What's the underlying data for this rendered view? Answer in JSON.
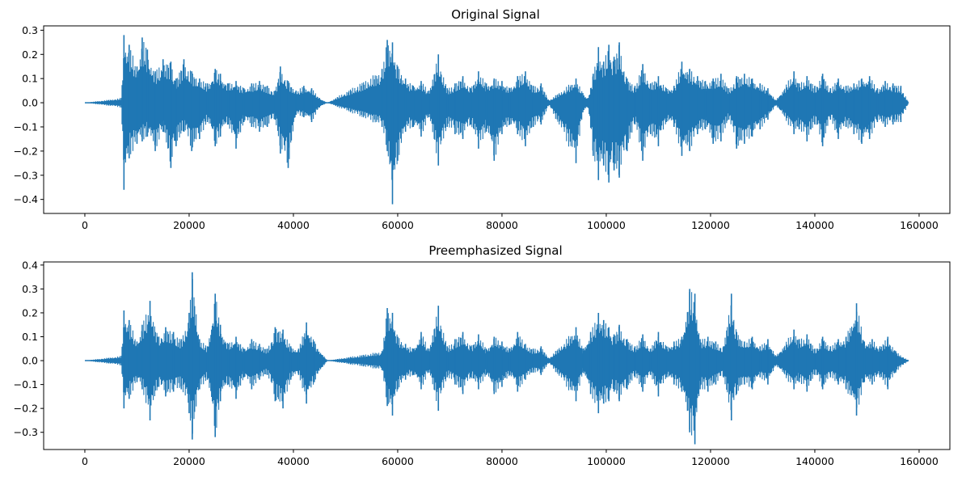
{
  "chart_data": [
    {
      "type": "line",
      "title": "Original Signal",
      "xlim": [
        -7900,
        165900
      ],
      "ylim": [
        -0.458,
        0.318
      ],
      "xticks": [
        0,
        20000,
        40000,
        60000,
        80000,
        100000,
        120000,
        140000,
        160000
      ],
      "xtick_labels": [
        "0",
        "20000",
        "40000",
        "60000",
        "80000",
        "100000",
        "120000",
        "140000",
        "160000"
      ],
      "yticks": [
        0.3,
        0.2,
        0.1,
        0.0,
        -0.1,
        -0.2,
        -0.3,
        -0.4
      ],
      "ytick_labels": [
        "0.3",
        "0.2",
        "0.1",
        "0.0",
        "−0.1",
        "−0.2",
        "−0.3",
        "−0.4"
      ],
      "series": [
        {
          "color": "#1f77b4",
          "x": [
            0,
            7000,
            7500,
            8500,
            10000,
            11000,
            12000,
            13500,
            15000,
            16500,
            17500,
            19000,
            20500,
            22000,
            23500,
            25000,
            26000,
            27500,
            29000,
            30500,
            32000,
            33500,
            35000,
            36500,
            37500,
            39000,
            40500,
            42000,
            43500,
            45000,
            46500,
            57000,
            58000,
            59000,
            60000,
            61500,
            63000,
            64500,
            66000,
            67800,
            69500,
            71000,
            72500,
            74000,
            75500,
            77000,
            78500,
            80000,
            81500,
            83000,
            84500,
            86000,
            87500,
            89000,
            94200,
            95500,
            96500,
            97500,
            98500,
            99500,
            100500,
            101500,
            102500,
            104000,
            105500,
            107000,
            108500,
            110000,
            111500,
            113000,
            114500,
            116000,
            117500,
            119000,
            120500,
            122000,
            123500,
            125000,
            126500,
            128000,
            129500,
            131000,
            132500,
            136000,
            137000,
            138500,
            140000,
            141500,
            143000,
            144500,
            146000,
            147500,
            149000,
            150500,
            152000,
            153500,
            155000,
            156500,
            158000
          ],
          "y_max": [
            0.0,
            0.02,
            0.28,
            0.24,
            0.15,
            0.27,
            0.22,
            0.13,
            0.18,
            0.17,
            0.1,
            0.18,
            0.13,
            0.1,
            0.08,
            0.14,
            0.12,
            0.08,
            0.09,
            0.06,
            0.08,
            0.09,
            0.07,
            0.05,
            0.15,
            0.09,
            0.05,
            0.07,
            0.06,
            0.02,
            0.0,
            0.14,
            0.26,
            0.25,
            0.15,
            0.1,
            0.07,
            0.09,
            0.05,
            0.2,
            0.06,
            0.08,
            0.11,
            0.06,
            0.13,
            0.08,
            0.1,
            0.09,
            0.06,
            0.11,
            0.13,
            0.07,
            0.08,
            0.01,
            0.1,
            0.04,
            0.02,
            0.12,
            0.23,
            0.17,
            0.24,
            0.19,
            0.25,
            0.1,
            0.07,
            0.16,
            0.08,
            0.11,
            0.06,
            0.07,
            0.17,
            0.14,
            0.11,
            0.09,
            0.1,
            0.12,
            0.06,
            0.11,
            0.12,
            0.1,
            0.08,
            0.06,
            0.01,
            0.13,
            0.08,
            0.11,
            0.07,
            0.12,
            0.06,
            0.1,
            0.07,
            0.08,
            0.1,
            0.11,
            0.06,
            0.09,
            0.08,
            0.07,
            0.0
          ],
          "y_min": [
            0.0,
            -0.02,
            -0.36,
            -0.23,
            -0.17,
            -0.16,
            -0.14,
            -0.2,
            -0.12,
            -0.27,
            -0.18,
            -0.12,
            -0.2,
            -0.15,
            -0.08,
            -0.18,
            -0.14,
            -0.09,
            -0.19,
            -0.08,
            -0.1,
            -0.12,
            -0.1,
            -0.07,
            -0.21,
            -0.27,
            -0.05,
            -0.06,
            -0.08,
            -0.02,
            0.0,
            -0.1,
            -0.2,
            -0.42,
            -0.24,
            -0.12,
            -0.1,
            -0.14,
            -0.06,
            -0.26,
            -0.1,
            -0.13,
            -0.15,
            -0.09,
            -0.19,
            -0.12,
            -0.24,
            -0.13,
            -0.09,
            -0.13,
            -0.18,
            -0.1,
            -0.09,
            -0.01,
            -0.25,
            -0.04,
            -0.02,
            -0.22,
            -0.32,
            -0.26,
            -0.33,
            -0.28,
            -0.31,
            -0.2,
            -0.09,
            -0.24,
            -0.13,
            -0.18,
            -0.08,
            -0.1,
            -0.22,
            -0.2,
            -0.13,
            -0.11,
            -0.17,
            -0.16,
            -0.07,
            -0.19,
            -0.17,
            -0.14,
            -0.11,
            -0.07,
            -0.01,
            -0.13,
            -0.11,
            -0.16,
            -0.09,
            -0.18,
            -0.07,
            -0.15,
            -0.1,
            -0.13,
            -0.17,
            -0.15,
            -0.08,
            -0.1,
            -0.09,
            -0.08,
            0.0
          ]
        }
      ]
    },
    {
      "type": "line",
      "title": "Preemphasized Signal",
      "xlim": [
        -7900,
        165900
      ],
      "ylim": [
        -0.372,
        0.413
      ],
      "xticks": [
        0,
        20000,
        40000,
        60000,
        80000,
        100000,
        120000,
        140000,
        160000
      ],
      "xtick_labels": [
        "0",
        "20000",
        "40000",
        "60000",
        "80000",
        "100000",
        "120000",
        "140000",
        "160000"
      ],
      "yticks": [
        0.4,
        0.3,
        0.2,
        0.1,
        0.0,
        -0.1,
        -0.2,
        -0.3
      ],
      "ytick_labels": [
        "0.4",
        "0.3",
        "0.2",
        "0.1",
        "0.0",
        "−0.1",
        "−0.2",
        "−0.3"
      ],
      "series": [
        {
          "color": "#1f77b4",
          "x": [
            0,
            7000,
            7500,
            8500,
            10000,
            11000,
            12500,
            14000,
            15500,
            17000,
            18500,
            20000,
            20600,
            22000,
            23500,
            25000,
            26000,
            27500,
            29000,
            30500,
            32000,
            33500,
            35000,
            36500,
            38000,
            39500,
            41000,
            42500,
            44000,
            46500,
            57000,
            58000,
            59000,
            60000,
            61500,
            63000,
            64500,
            66000,
            67800,
            69500,
            71000,
            72500,
            74000,
            75500,
            77000,
            78500,
            80000,
            81500,
            83000,
            84500,
            86000,
            87500,
            89000,
            94200,
            95500,
            97000,
            98500,
            99500,
            100500,
            101500,
            102500,
            104000,
            105500,
            107000,
            108500,
            110000,
            111500,
            113000,
            114500,
            116000,
            117000,
            118000,
            119500,
            121000,
            122500,
            124000,
            125000,
            126500,
            128000,
            129500,
            131000,
            132500,
            136000,
            137000,
            138500,
            140000,
            141500,
            143000,
            144500,
            146000,
            148000,
            149500,
            151000,
            152500,
            154000,
            155500,
            158000
          ],
          "y_max": [
            0.0,
            0.02,
            0.21,
            0.17,
            0.08,
            0.15,
            0.25,
            0.1,
            0.14,
            0.12,
            0.09,
            0.2,
            0.37,
            0.09,
            0.06,
            0.28,
            0.15,
            0.07,
            0.1,
            0.05,
            0.09,
            0.07,
            0.05,
            0.14,
            0.13,
            0.06,
            0.05,
            0.16,
            0.08,
            0.0,
            0.04,
            0.22,
            0.2,
            0.1,
            0.07,
            0.05,
            0.12,
            0.05,
            0.23,
            0.06,
            0.09,
            0.12,
            0.06,
            0.11,
            0.05,
            0.1,
            0.08,
            0.05,
            0.12,
            0.07,
            0.05,
            0.06,
            0.01,
            0.14,
            0.05,
            0.12,
            0.2,
            0.17,
            0.14,
            0.11,
            0.15,
            0.09,
            0.06,
            0.11,
            0.05,
            0.12,
            0.06,
            0.08,
            0.1,
            0.3,
            0.28,
            0.09,
            0.1,
            0.08,
            0.06,
            0.28,
            0.12,
            0.08,
            0.1,
            0.06,
            0.09,
            0.02,
            0.13,
            0.09,
            0.11,
            0.05,
            0.1,
            0.06,
            0.09,
            0.1,
            0.24,
            0.08,
            0.09,
            0.06,
            0.1,
            0.04,
            0.0
          ],
          "y_min": [
            0.0,
            -0.02,
            -0.2,
            -0.16,
            -0.09,
            -0.12,
            -0.25,
            -0.11,
            -0.15,
            -0.13,
            -0.12,
            -0.22,
            -0.33,
            -0.12,
            -0.08,
            -0.32,
            -0.17,
            -0.1,
            -0.16,
            -0.07,
            -0.12,
            -0.08,
            -0.06,
            -0.17,
            -0.2,
            -0.08,
            -0.06,
            -0.18,
            -0.09,
            0.0,
            -0.04,
            -0.19,
            -0.23,
            -0.12,
            -0.08,
            -0.06,
            -0.12,
            -0.05,
            -0.21,
            -0.07,
            -0.1,
            -0.14,
            -0.07,
            -0.12,
            -0.06,
            -0.14,
            -0.11,
            -0.06,
            -0.13,
            -0.08,
            -0.05,
            -0.06,
            -0.01,
            -0.17,
            -0.05,
            -0.14,
            -0.22,
            -0.18,
            -0.17,
            -0.13,
            -0.17,
            -0.12,
            -0.07,
            -0.13,
            -0.06,
            -0.15,
            -0.07,
            -0.1,
            -0.13,
            -0.3,
            -0.35,
            -0.12,
            -0.13,
            -0.1,
            -0.07,
            -0.25,
            -0.14,
            -0.1,
            -0.12,
            -0.07,
            -0.1,
            -0.02,
            -0.12,
            -0.09,
            -0.13,
            -0.06,
            -0.12,
            -0.07,
            -0.1,
            -0.12,
            -0.23,
            -0.09,
            -0.1,
            -0.07,
            -0.12,
            -0.05,
            0.0
          ]
        }
      ]
    }
  ]
}
